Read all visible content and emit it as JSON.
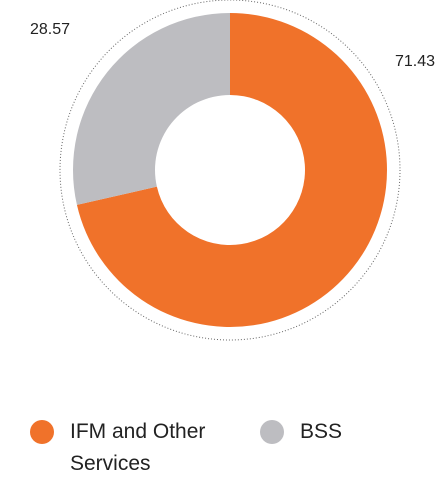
{
  "chart_data": {
    "type": "pie",
    "donut": true,
    "categories": [
      "IFM and Other Services",
      "BSS"
    ],
    "values": [
      71.43,
      28.57
    ],
    "colors": [
      "#f0722a",
      "#bdbdc1"
    ]
  }
}
